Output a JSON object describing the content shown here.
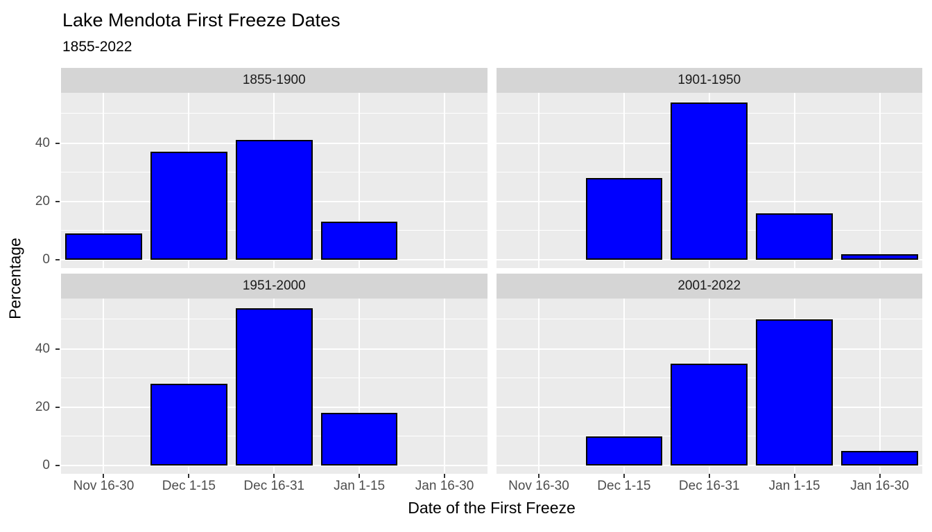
{
  "chart_data": {
    "type": "bar",
    "title": "Lake Mendota First Freeze Dates",
    "subtitle": "1855-2022",
    "xlabel": "Date of the First Freeze",
    "ylabel": "Percentage",
    "categories": [
      "Nov 16-30",
      "Dec 1-15",
      "Dec 16-31",
      "Jan 1-15",
      "Jan 16-30"
    ],
    "y_ticks": [
      0,
      20,
      40
    ],
    "y_minor_ticks": [
      10,
      30,
      50
    ],
    "ylim": [
      -2.8,
      57.2
    ],
    "grid": true,
    "legend": "none",
    "colors": {
      "bar_fill": "#0000ff",
      "bar_border": "#000000",
      "panel_background": "#ebebeb",
      "strip_background": "#d5d5d5",
      "gridline": "#ffffff",
      "tick_text": "#4d4d4d"
    },
    "facets": [
      {
        "label": "1855-1900",
        "values": [
          9,
          37,
          41,
          13,
          0
        ]
      },
      {
        "label": "1901-1950",
        "values": [
          0,
          28,
          54,
          16,
          2
        ]
      },
      {
        "label": "1951-2000",
        "values": [
          0,
          28,
          54,
          18,
          0
        ]
      },
      {
        "label": "2001-2022",
        "values": [
          0,
          10,
          35,
          50,
          5
        ]
      }
    ]
  }
}
